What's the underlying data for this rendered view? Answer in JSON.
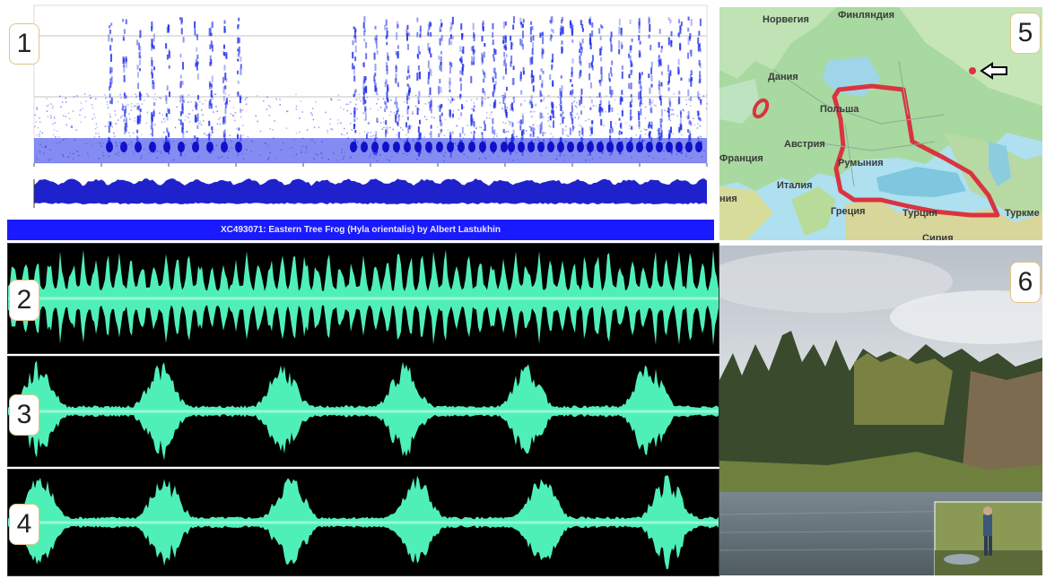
{
  "panels": {
    "p1": {
      "number": "1"
    },
    "p2": {
      "number": "2"
    },
    "p3": {
      "number": "3"
    },
    "p4": {
      "number": "4"
    },
    "p5": {
      "number": "5"
    },
    "p6": {
      "number": "6"
    }
  },
  "banner": {
    "text": "XC493071: Eastern Tree Frog (Hyla orientalis) by Albert Lastukhin"
  },
  "map": {
    "labels": {
      "norway": "Норвегия",
      "finland": "Финляндия",
      "denmark": "Дания",
      "poland": "Польша",
      "austria": "Австрия",
      "france": "Франция",
      "romania": "Румыния",
      "italy": "Италия",
      "greece": "Греция",
      "turkey": "Турция",
      "turkmen": "Туркме",
      "syria": "Сирия",
      "spain_partial": "ния"
    },
    "range_color": "#d9343f",
    "arrow_color": "#000000"
  },
  "colors": {
    "spectrogram": "#1f2ee8",
    "waveform": "#4ff0b8",
    "banner": "#1a1aff"
  }
}
